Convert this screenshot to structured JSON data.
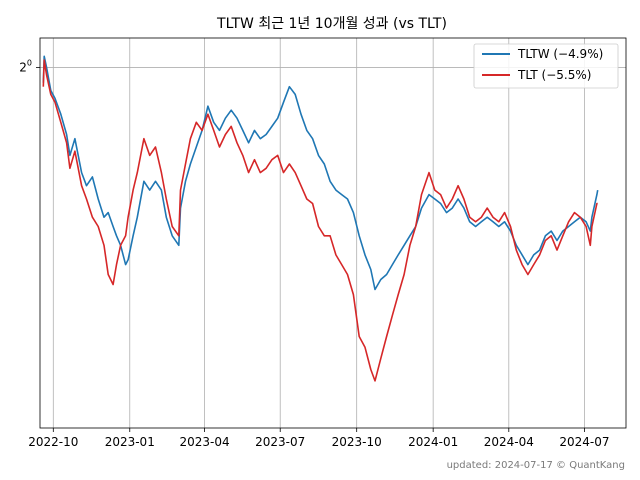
{
  "chart_data": {
    "type": "line",
    "title": "TLTW 최근 1년 10개월 성과 (vs TLT)",
    "xlabel": "",
    "ylabel": "",
    "y_scale": "log2",
    "y_ticks": [
      {
        "value": 1.0,
        "base": "2",
        "exp": "0"
      }
    ],
    "ylim": [
      0.62,
      1.04
    ],
    "xlim": [
      "2022-09-15",
      "2024-08-20"
    ],
    "x_ticks": [
      {
        "date": "2022-10-01",
        "label": "2022-10"
      },
      {
        "date": "2023-01-01",
        "label": "2023-01"
      },
      {
        "date": "2023-04-01",
        "label": "2023-04"
      },
      {
        "date": "2023-07-01",
        "label": "2023-07"
      },
      {
        "date": "2023-10-01",
        "label": "2023-10"
      },
      {
        "date": "2024-01-01",
        "label": "2024-01"
      },
      {
        "date": "2024-04-01",
        "label": "2024-04"
      },
      {
        "date": "2024-07-01",
        "label": "2024-07"
      }
    ],
    "grid": true,
    "legend_position": "top-right",
    "series": [
      {
        "name": "TLTW (−4.9%)",
        "color": "#1f77b4",
        "points": [
          [
            "2022-09-19",
            0.98
          ],
          [
            "2022-09-20",
            1.015
          ],
          [
            "2022-09-23",
            1.0
          ],
          [
            "2022-09-28",
            0.97
          ],
          [
            "2022-10-03",
            0.96
          ],
          [
            "2022-10-10",
            0.94
          ],
          [
            "2022-10-17",
            0.915
          ],
          [
            "2022-10-21",
            0.89
          ],
          [
            "2022-10-27",
            0.91
          ],
          [
            "2022-11-04",
            0.87
          ],
          [
            "2022-11-10",
            0.855
          ],
          [
            "2022-11-17",
            0.865
          ],
          [
            "2022-11-24",
            0.84
          ],
          [
            "2022-12-01",
            0.82
          ],
          [
            "2022-12-06",
            0.825
          ],
          [
            "2022-12-12",
            0.81
          ],
          [
            "2022-12-16",
            0.8
          ],
          [
            "2022-12-21",
            0.79
          ],
          [
            "2022-12-27",
            0.77
          ],
          [
            "2022-12-30",
            0.775
          ],
          [
            "2023-01-05",
            0.8
          ],
          [
            "2023-01-10",
            0.82
          ],
          [
            "2023-01-18",
            0.86
          ],
          [
            "2023-01-25",
            0.85
          ],
          [
            "2023-02-01",
            0.86
          ],
          [
            "2023-02-08",
            0.85
          ],
          [
            "2023-02-14",
            0.82
          ],
          [
            "2023-02-21",
            0.8
          ],
          [
            "2023-03-01",
            0.79
          ],
          [
            "2023-03-03",
            0.83
          ],
          [
            "2023-03-09",
            0.86
          ],
          [
            "2023-03-15",
            0.88
          ],
          [
            "2023-03-22",
            0.9
          ],
          [
            "2023-03-29",
            0.92
          ],
          [
            "2023-04-05",
            0.95
          ],
          [
            "2023-04-12",
            0.93
          ],
          [
            "2023-04-19",
            0.92
          ],
          [
            "2023-04-26",
            0.935
          ],
          [
            "2023-05-03",
            0.945
          ],
          [
            "2023-05-10",
            0.935
          ],
          [
            "2023-05-17",
            0.92
          ],
          [
            "2023-05-24",
            0.905
          ],
          [
            "2023-05-31",
            0.92
          ],
          [
            "2023-06-07",
            0.91
          ],
          [
            "2023-06-14",
            0.915
          ],
          [
            "2023-06-21",
            0.925
          ],
          [
            "2023-06-28",
            0.935
          ],
          [
            "2023-07-05",
            0.955
          ],
          [
            "2023-07-12",
            0.975
          ],
          [
            "2023-07-19",
            0.965
          ],
          [
            "2023-07-26",
            0.94
          ],
          [
            "2023-08-02",
            0.92
          ],
          [
            "2023-08-09",
            0.91
          ],
          [
            "2023-08-16",
            0.89
          ],
          [
            "2023-08-23",
            0.88
          ],
          [
            "2023-08-30",
            0.86
          ],
          [
            "2023-09-06",
            0.85
          ],
          [
            "2023-09-13",
            0.845
          ],
          [
            "2023-09-20",
            0.84
          ],
          [
            "2023-09-27",
            0.825
          ],
          [
            "2023-10-04",
            0.8
          ],
          [
            "2023-10-11",
            0.78
          ],
          [
            "2023-10-18",
            0.765
          ],
          [
            "2023-10-23",
            0.745
          ],
          [
            "2023-10-30",
            0.755
          ],
          [
            "2023-11-06",
            0.76
          ],
          [
            "2023-11-13",
            0.77
          ],
          [
            "2023-11-20",
            0.78
          ],
          [
            "2023-11-27",
            0.79
          ],
          [
            "2023-12-04",
            0.8
          ],
          [
            "2023-12-11",
            0.81
          ],
          [
            "2023-12-18",
            0.83
          ],
          [
            "2023-12-27",
            0.845
          ],
          [
            "2024-01-03",
            0.84
          ],
          [
            "2024-01-10",
            0.835
          ],
          [
            "2024-01-17",
            0.825
          ],
          [
            "2024-01-24",
            0.83
          ],
          [
            "2024-01-31",
            0.84
          ],
          [
            "2024-02-07",
            0.83
          ],
          [
            "2024-02-14",
            0.815
          ],
          [
            "2024-02-21",
            0.81
          ],
          [
            "2024-02-28",
            0.815
          ],
          [
            "2024-03-06",
            0.82
          ],
          [
            "2024-03-13",
            0.815
          ],
          [
            "2024-03-20",
            0.81
          ],
          [
            "2024-03-27",
            0.815
          ],
          [
            "2024-04-03",
            0.805
          ],
          [
            "2024-04-10",
            0.79
          ],
          [
            "2024-04-17",
            0.78
          ],
          [
            "2024-04-24",
            0.77
          ],
          [
            "2024-05-01",
            0.78
          ],
          [
            "2024-05-08",
            0.785
          ],
          [
            "2024-05-15",
            0.8
          ],
          [
            "2024-05-22",
            0.805
          ],
          [
            "2024-05-29",
            0.795
          ],
          [
            "2024-06-05",
            0.805
          ],
          [
            "2024-06-12",
            0.81
          ],
          [
            "2024-06-19",
            0.815
          ],
          [
            "2024-06-26",
            0.82
          ],
          [
            "2024-07-03",
            0.815
          ],
          [
            "2024-07-08",
            0.805
          ],
          [
            "2024-07-10",
            0.82
          ],
          [
            "2024-07-16",
            0.845
          ],
          [
            "2024-07-17",
            0.85
          ]
        ]
      },
      {
        "name": "TLT (−5.5%)",
        "color": "#d62728",
        "points": [
          [
            "2022-09-19",
            0.975
          ],
          [
            "2022-09-20",
            1.01
          ],
          [
            "2022-09-23",
            0.99
          ],
          [
            "2022-09-28",
            0.965
          ],
          [
            "2022-10-03",
            0.955
          ],
          [
            "2022-10-10",
            0.93
          ],
          [
            "2022-10-17",
            0.905
          ],
          [
            "2022-10-21",
            0.875
          ],
          [
            "2022-10-27",
            0.895
          ],
          [
            "2022-11-04",
            0.855
          ],
          [
            "2022-11-10",
            0.84
          ],
          [
            "2022-11-17",
            0.82
          ],
          [
            "2022-11-24",
            0.81
          ],
          [
            "2022-12-01",
            0.79
          ],
          [
            "2022-12-06",
            0.76
          ],
          [
            "2022-12-12",
            0.75
          ],
          [
            "2022-12-16",
            0.77
          ],
          [
            "2022-12-21",
            0.79
          ],
          [
            "2022-12-27",
            0.8
          ],
          [
            "2022-12-30",
            0.82
          ],
          [
            "2023-01-05",
            0.85
          ],
          [
            "2023-01-10",
            0.87
          ],
          [
            "2023-01-18",
            0.91
          ],
          [
            "2023-01-25",
            0.89
          ],
          [
            "2023-02-01",
            0.9
          ],
          [
            "2023-02-08",
            0.87
          ],
          [
            "2023-02-14",
            0.84
          ],
          [
            "2023-02-21",
            0.81
          ],
          [
            "2023-03-01",
            0.8
          ],
          [
            "2023-03-03",
            0.85
          ],
          [
            "2023-03-09",
            0.88
          ],
          [
            "2023-03-15",
            0.91
          ],
          [
            "2023-03-22",
            0.93
          ],
          [
            "2023-03-29",
            0.92
          ],
          [
            "2023-04-05",
            0.94
          ],
          [
            "2023-04-12",
            0.92
          ],
          [
            "2023-04-19",
            0.9
          ],
          [
            "2023-04-26",
            0.915
          ],
          [
            "2023-05-03",
            0.925
          ],
          [
            "2023-05-10",
            0.905
          ],
          [
            "2023-05-17",
            0.89
          ],
          [
            "2023-05-24",
            0.87
          ],
          [
            "2023-05-31",
            0.885
          ],
          [
            "2023-06-07",
            0.87
          ],
          [
            "2023-06-14",
            0.875
          ],
          [
            "2023-06-21",
            0.885
          ],
          [
            "2023-06-28",
            0.89
          ],
          [
            "2023-07-05",
            0.87
          ],
          [
            "2023-07-12",
            0.88
          ],
          [
            "2023-07-19",
            0.87
          ],
          [
            "2023-07-26",
            0.855
          ],
          [
            "2023-08-02",
            0.84
          ],
          [
            "2023-08-09",
            0.835
          ],
          [
            "2023-08-16",
            0.81
          ],
          [
            "2023-08-23",
            0.8
          ],
          [
            "2023-08-30",
            0.8
          ],
          [
            "2023-09-06",
            0.78
          ],
          [
            "2023-09-13",
            0.77
          ],
          [
            "2023-09-20",
            0.76
          ],
          [
            "2023-09-27",
            0.74
          ],
          [
            "2023-10-04",
            0.7
          ],
          [
            "2023-10-11",
            0.69
          ],
          [
            "2023-10-18",
            0.67
          ],
          [
            "2023-10-23",
            0.66
          ],
          [
            "2023-10-30",
            0.68
          ],
          [
            "2023-11-06",
            0.7
          ],
          [
            "2023-11-13",
            0.72
          ],
          [
            "2023-11-20",
            0.74
          ],
          [
            "2023-11-27",
            0.76
          ],
          [
            "2023-12-04",
            0.79
          ],
          [
            "2023-12-11",
            0.81
          ],
          [
            "2023-12-18",
            0.845
          ],
          [
            "2023-12-27",
            0.87
          ],
          [
            "2024-01-03",
            0.85
          ],
          [
            "2024-01-10",
            0.845
          ],
          [
            "2024-01-17",
            0.83
          ],
          [
            "2024-01-24",
            0.84
          ],
          [
            "2024-01-31",
            0.855
          ],
          [
            "2024-02-07",
            0.84
          ],
          [
            "2024-02-14",
            0.82
          ],
          [
            "2024-02-21",
            0.815
          ],
          [
            "2024-02-28",
            0.82
          ],
          [
            "2024-03-06",
            0.83
          ],
          [
            "2024-03-13",
            0.82
          ],
          [
            "2024-03-20",
            0.815
          ],
          [
            "2024-03-27",
            0.825
          ],
          [
            "2024-04-03",
            0.81
          ],
          [
            "2024-04-10",
            0.785
          ],
          [
            "2024-04-17",
            0.77
          ],
          [
            "2024-04-24",
            0.76
          ],
          [
            "2024-05-01",
            0.77
          ],
          [
            "2024-05-08",
            0.78
          ],
          [
            "2024-05-15",
            0.795
          ],
          [
            "2024-05-22",
            0.8
          ],
          [
            "2024-05-29",
            0.785
          ],
          [
            "2024-06-05",
            0.8
          ],
          [
            "2024-06-12",
            0.815
          ],
          [
            "2024-06-19",
            0.825
          ],
          [
            "2024-06-26",
            0.82
          ],
          [
            "2024-07-03",
            0.81
          ],
          [
            "2024-07-08",
            0.79
          ],
          [
            "2024-07-10",
            0.81
          ],
          [
            "2024-07-16",
            0.835
          ],
          [
            "2024-07-17",
            0.835
          ]
        ]
      }
    ]
  },
  "footer": "updated: 2024-07-17 © QuantKang"
}
